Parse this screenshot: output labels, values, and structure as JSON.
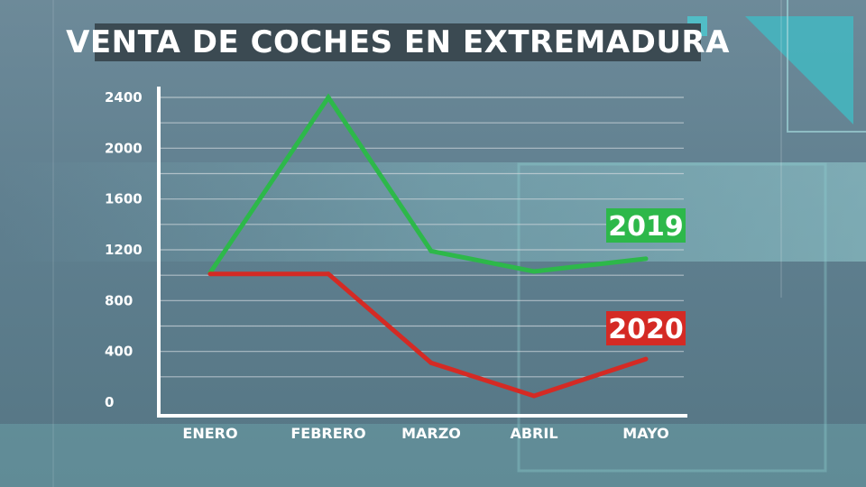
{
  "title": "VENTA DE COCHES EN EXTREMADURA",
  "colors": {
    "green": "#2db84a",
    "red": "#d42a24",
    "grid": "#c9d3d8",
    "axis": "#ffffff",
    "title_bg": "#3b4a52"
  },
  "chart_data": {
    "type": "line",
    "title": "VENTA DE COCHES EN EXTREMADURA",
    "categories": [
      "ENERO",
      "FEBRERO",
      "MARZO",
      "ABRIL",
      "MAYO"
    ],
    "series": [
      {
        "name": "2019",
        "values": [
          1020,
          2400,
          1190,
          1030,
          1130
        ],
        "color": "#2db84a"
      },
      {
        "name": "2020",
        "values": [
          1010,
          1010,
          310,
          50,
          340
        ],
        "color": "#d42a24"
      }
    ],
    "yticks": [
      0,
      400,
      800,
      1200,
      1600,
      2000,
      2400
    ],
    "ylim": [
      0,
      2400
    ],
    "grid": true,
    "legend": "labels at line ends"
  }
}
